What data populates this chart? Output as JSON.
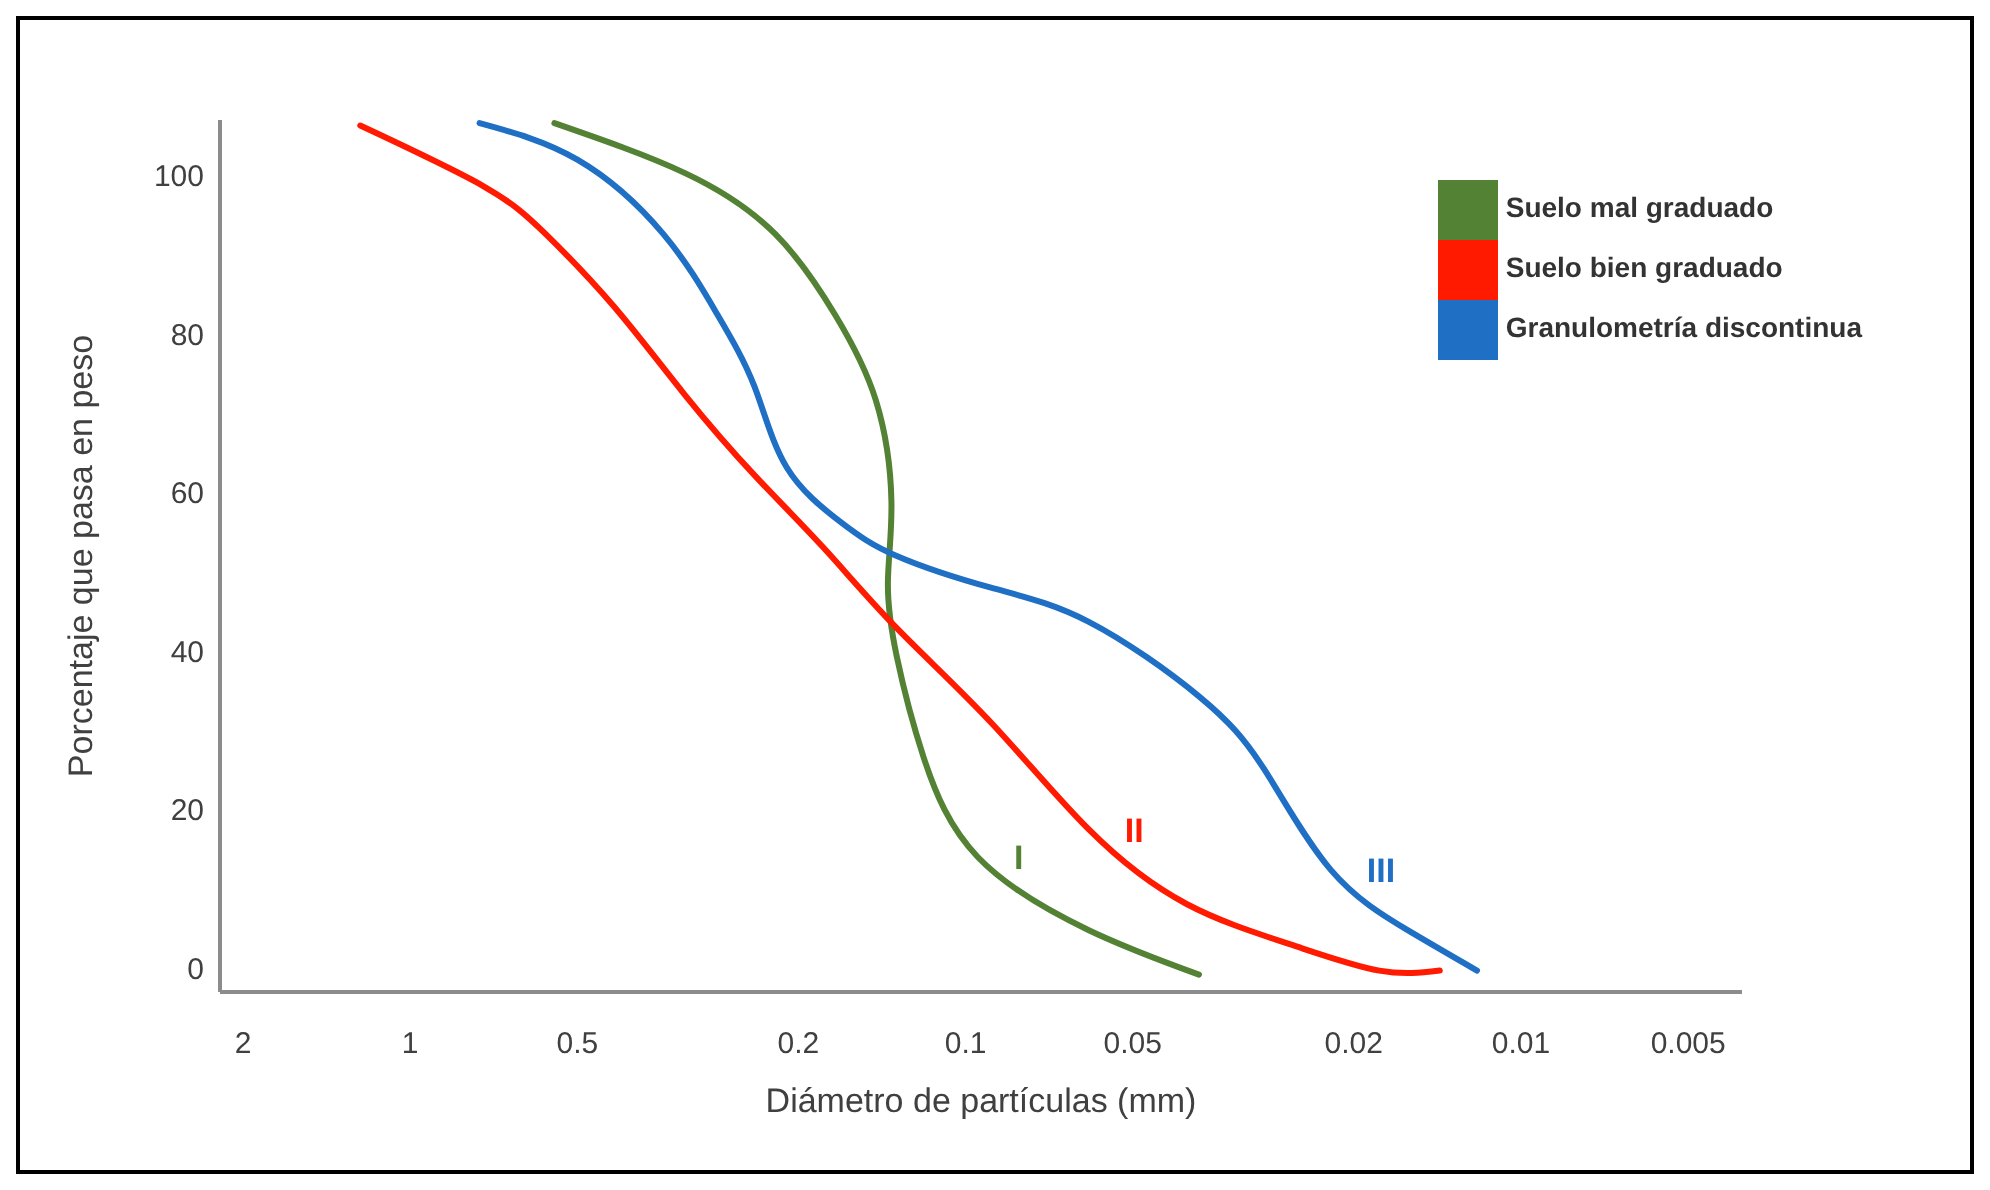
{
  "chart_data": {
    "type": "line",
    "xlabel": "Diámetro de partículas (mm)",
    "ylabel": "Porcentaje que pasa en peso",
    "log": "x",
    "xlim": [
      2.2,
      0.004
    ],
    "xticks": [
      2,
      1,
      0.5,
      0.2,
      0.1,
      0.05,
      0.02,
      0.01,
      0.005
    ],
    "ylim": [
      -3,
      107
    ],
    "yticks": [
      0,
      20,
      40,
      60,
      80,
      100
    ],
    "grid": false,
    "legend": "top right",
    "line_style": "solid",
    "marker": "none",
    "series": [
      {
        "name": "Suelo mal graduado",
        "color": "#548235",
        "x": [
          0.55,
          0.32,
          0.22,
          0.172,
          0.145,
          0.136,
          0.138,
          0.133,
          0.119,
          0.095,
          0.06,
          0.038
        ],
        "values": [
          106.6,
          100.3,
          92.6,
          82.5,
          71.6,
          58.9,
          48.7,
          39.3,
          26.6,
          14,
          4.8,
          -0.8
        ]
      },
      {
        "name": "Suelo bien graduado",
        "color": "#ff1a00",
        "x": [
          1.23,
          0.74,
          0.57,
          0.43,
          0.32,
          0.24,
          0.18,
          0.133,
          0.09,
          0.06,
          0.04,
          0.026,
          0.018,
          0.014
        ],
        "values": [
          106.3,
          98.7,
          92.6,
          83.5,
          72.3,
          62.2,
          53,
          42.9,
          31,
          17.5,
          8.1,
          3,
          -0.3,
          -0.3
        ]
      },
      {
        "name": "Granulometría discontinua",
        "color": "#1f6fc5",
        "x": [
          0.75,
          0.5,
          0.35,
          0.28,
          0.24,
          0.21,
          0.168,
          0.133,
          0.09,
          0.06,
          0.038,
          0.029,
          0.022,
          0.016,
          0.012
        ],
        "values": [
          106.6,
          102,
          92.6,
          82.5,
          73.4,
          63.2,
          56.3,
          52,
          48,
          43.7,
          34.3,
          25.1,
          12.4,
          4.8,
          -0.3
        ]
      }
    ],
    "annotations": [
      "I",
      "II",
      "III"
    ]
  }
}
